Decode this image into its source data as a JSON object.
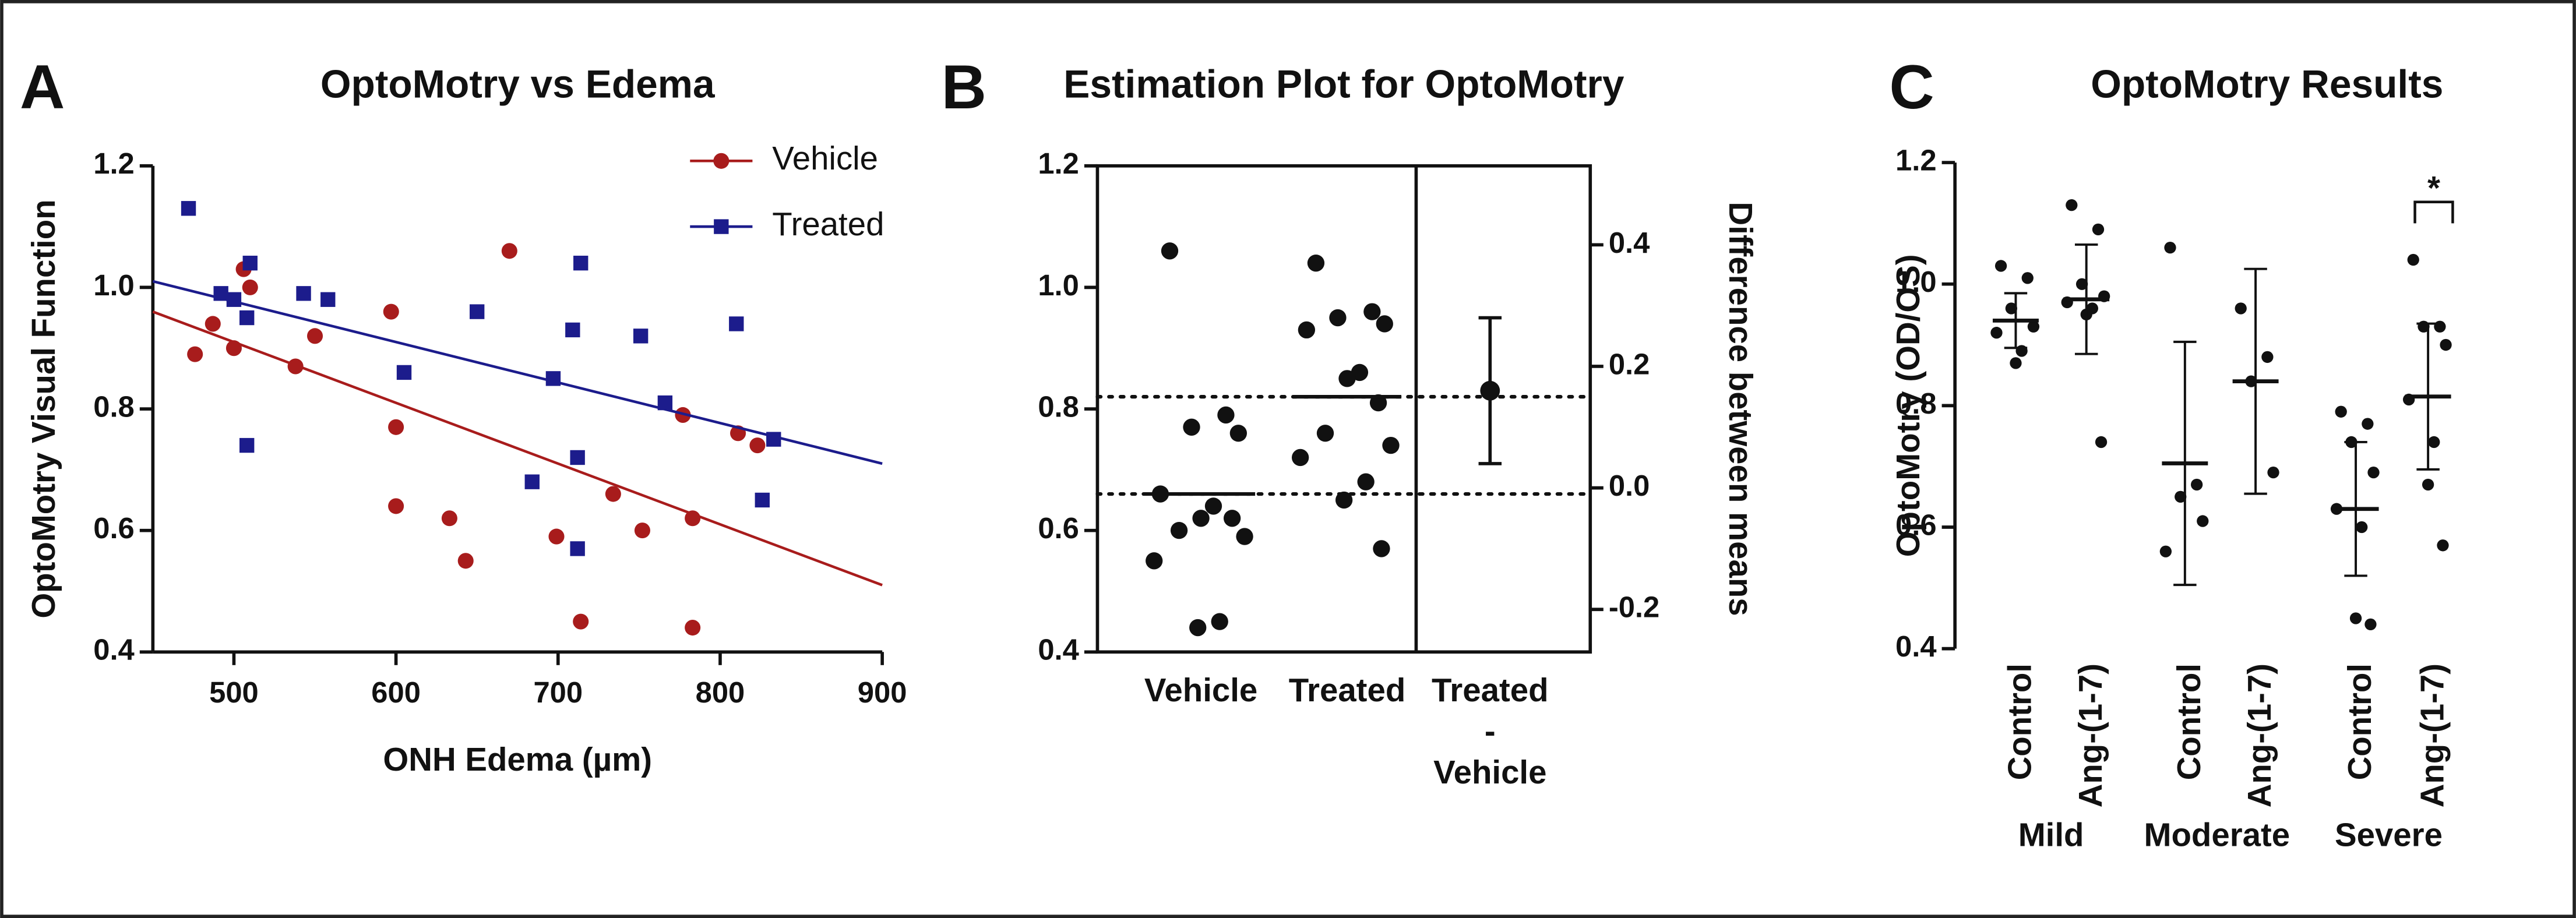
{
  "chart_data": [
    {
      "type": "scatter",
      "letter": "A",
      "title": "OptoMotry vs Edema",
      "xlabel": "ONH Edema (µm)",
      "ylabel": "OptoMotry Visual Function",
      "xlim": [
        450,
        900
      ],
      "xticks": [
        500,
        600,
        700,
        800,
        900
      ],
      "ylim": [
        0.4,
        1.2
      ],
      "yticks": [
        0.4,
        0.6,
        0.8,
        {
          "value": 1,
          "label": "1.0"
        },
        1.2
      ],
      "legend": "top-right",
      "series": [
        {
          "name": "Vehicle",
          "color": "#a81c1c",
          "marker": "circle",
          "x": [
            476,
            487,
            500,
            506,
            510,
            538,
            550,
            597,
            600,
            600,
            633,
            643,
            670,
            699,
            714,
            734,
            752,
            777,
            783,
            783,
            811,
            823
          ],
          "values": [
            0.89,
            0.94,
            0.9,
            1.03,
            1.0,
            0.87,
            0.92,
            0.96,
            0.77,
            0.64,
            0.62,
            0.55,
            1.06,
            0.59,
            0.45,
            0.66,
            0.6,
            0.79,
            0.62,
            0.44,
            0.76,
            0.74
          ],
          "fit_x": [
            450,
            900
          ],
          "fit": [
            0.96,
            0.51
          ]
        },
        {
          "name": "Treated",
          "color": "#1c1c8c",
          "marker": "square",
          "x": [
            472,
            492,
            500,
            508,
            510,
            508,
            543,
            558,
            605,
            650,
            697,
            709,
            714,
            712,
            712,
            684,
            751,
            766,
            810,
            826,
            833
          ],
          "values": [
            1.13,
            0.99,
            0.98,
            0.95,
            1.04,
            0.74,
            0.99,
            0.98,
            0.86,
            0.96,
            0.85,
            0.93,
            1.04,
            0.72,
            0.57,
            0.68,
            0.92,
            0.81,
            0.94,
            0.65,
            0.75
          ],
          "fit_x": [
            450,
            900
          ],
          "fit": [
            1.01,
            0.71
          ]
        }
      ]
    },
    {
      "type": "estimation",
      "letter": "B",
      "title": "Estimation Plot for OptoMotry",
      "y2label": "Difference between means",
      "categories": [
        "Vehicle",
        "Treated",
        "Treated\n-\nVehicle"
      ],
      "ylim": [
        0.4,
        1.2
      ],
      "yticks": [
        0.4,
        0.6,
        0.8,
        {
          "value": 1,
          "label": "1.0"
        },
        1.2
      ],
      "y2lim": [
        -0.27,
        0.53
      ],
      "y2ticks": [
        -0.2,
        {
          "value": 0,
          "label": "0.0"
        },
        0.2,
        0.4
      ],
      "groups": [
        [
          1.06,
          0.79,
          0.77,
          0.76,
          0.66,
          0.64,
          0.62,
          0.62,
          0.6,
          0.59,
          0.55,
          0.45,
          0.44
        ],
        [
          1.04,
          0.96,
          0.95,
          0.94,
          0.93,
          0.86,
          0.85,
          0.81,
          0.76,
          0.74,
          0.72,
          0.68,
          0.65,
          0.57
        ]
      ],
      "means": [
        0.66,
        0.82
      ],
      "difference": 0.16,
      "ci": [
        0.04,
        0.28
      ]
    },
    {
      "type": "dot",
      "letter": "C",
      "title": "OptoMotry Results",
      "ylabel": "OptoMotry (OD/OS)",
      "ylim": [
        0.4,
        1.2
      ],
      "yticks": [
        0.4,
        0.6,
        0.8,
        {
          "value": 1,
          "label": "1.0"
        },
        1.2
      ],
      "groups": [
        "Mild",
        "Moderate",
        "Severe"
      ],
      "categories": [
        "Control",
        "Ang-(1-7)",
        "Control",
        "Ang-(1-7)",
        "Control",
        "Ang-(1-7)"
      ],
      "points": [
        [
          1.03,
          1.01,
          0.96,
          0.93,
          0.92,
          0.89,
          0.87
        ],
        [
          1.13,
          1.09,
          1.0,
          0.98,
          0.97,
          0.96,
          0.95,
          0.74
        ],
        [
          1.06,
          0.67,
          0.65,
          0.61,
          0.56
        ],
        [
          0.96,
          0.88,
          0.84,
          0.69
        ],
        [
          0.79,
          0.77,
          0.74,
          0.69,
          0.63,
          0.6,
          0.45,
          0.44
        ],
        [
          1.04,
          0.93,
          0.93,
          0.9,
          0.81,
          0.74,
          0.67,
          0.57
        ]
      ],
      "means": [
        0.94,
        0.975,
        0.705,
        0.84,
        0.63,
        0.815
      ],
      "sd": [
        0.045,
        0.09,
        0.2,
        0.185,
        0.11,
        0.12
      ],
      "annotation": "*"
    }
  ]
}
